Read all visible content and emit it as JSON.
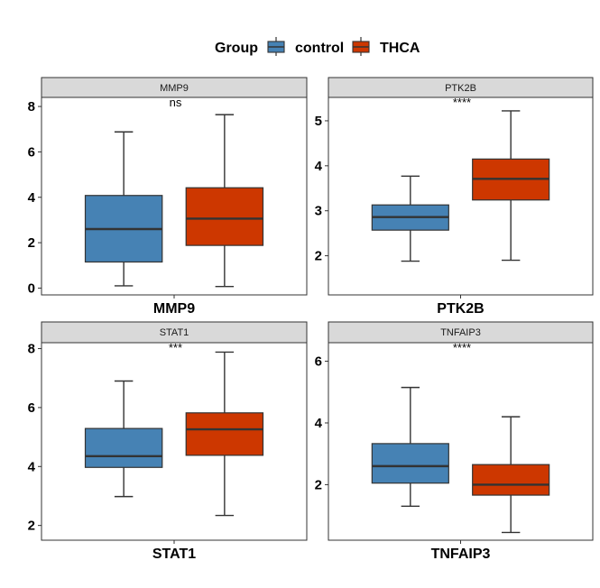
{
  "legend": {
    "title": "Group",
    "entries": [
      {
        "name": "control",
        "color": "#4682B4"
      },
      {
        "name": "THCA",
        "color": "#CD3700"
      }
    ]
  },
  "colors": {
    "strip_bg": "#D9D9D9",
    "box_line": "#333333",
    "panel_border": "#333333"
  },
  "chart_data": [
    {
      "type": "boxplot",
      "title": "MMP9",
      "category": "MMP9",
      "significance": "ns",
      "ylim": [
        -0.3,
        8.4
      ],
      "yticks": [
        0,
        2,
        4,
        6,
        8
      ],
      "groups": [
        {
          "name": "control",
          "min": 0.1,
          "q1": 1.15,
          "median": 2.6,
          "q3": 4.08,
          "max": 6.88
        },
        {
          "name": "THCA",
          "min": 0.07,
          "q1": 1.88,
          "median": 3.06,
          "q3": 4.42,
          "max": 7.64
        }
      ]
    },
    {
      "type": "boxplot",
      "title": "PTK2B",
      "category": "PTK2B",
      "significance": "****",
      "ylim": [
        1.13,
        5.52
      ],
      "yticks": [
        2,
        3,
        4,
        5
      ],
      "groups": [
        {
          "name": "control",
          "min": 1.88,
          "q1": 2.57,
          "median": 2.86,
          "q3": 3.13,
          "max": 3.77
        },
        {
          "name": "THCA",
          "min": 1.9,
          "q1": 3.24,
          "median": 3.71,
          "q3": 4.15,
          "max": 5.22
        }
      ]
    },
    {
      "type": "boxplot",
      "title": "STAT1",
      "category": "STAT1",
      "significance": "***",
      "ylim": [
        1.5,
        8.2
      ],
      "yticks": [
        2,
        4,
        6,
        8
      ],
      "groups": [
        {
          "name": "control",
          "min": 2.98,
          "q1": 3.97,
          "median": 4.35,
          "q3": 5.29,
          "max": 6.9
        },
        {
          "name": "THCA",
          "min": 2.34,
          "q1": 4.38,
          "median": 5.26,
          "q3": 5.82,
          "max": 7.88
        }
      ]
    },
    {
      "type": "boxplot",
      "title": "TNFAIP3",
      "category": "TNFAIP3",
      "significance": "****",
      "ylim": [
        0.2,
        6.6
      ],
      "yticks": [
        2,
        4,
        6
      ],
      "groups": [
        {
          "name": "control",
          "min": 1.3,
          "q1": 2.05,
          "median": 2.6,
          "q3": 3.33,
          "max": 5.15
        },
        {
          "name": "THCA",
          "min": 0.45,
          "q1": 1.66,
          "median": 2.0,
          "q3": 2.65,
          "max": 4.2
        }
      ]
    }
  ]
}
